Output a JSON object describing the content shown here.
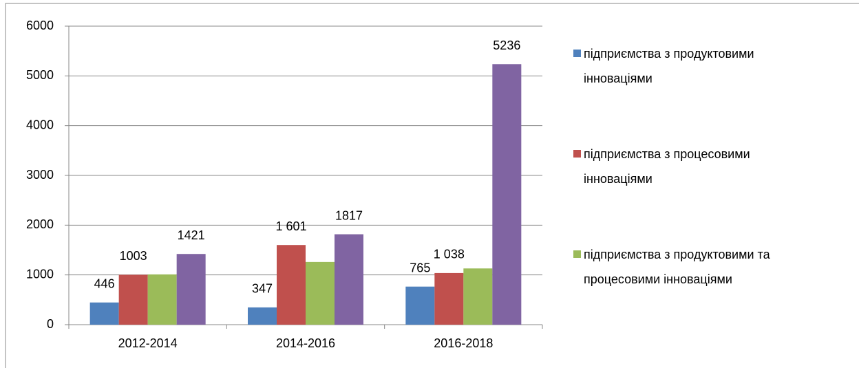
{
  "chart_data": {
    "type": "bar",
    "categories": [
      "2012-2014",
      "2014-2016",
      "2016-2018"
    ],
    "series": [
      {
        "name": "підприємства з продуктовими інноваціями",
        "color": "#4f81bd",
        "values": [
          446,
          347,
          765
        ],
        "show_labels": true
      },
      {
        "name": "підприємства з процесовими інноваціями",
        "color": "#c0504d",
        "values": [
          1003,
          1601,
          1038
        ],
        "value_labels": [
          "1003",
          "1 601",
          "1 038"
        ],
        "show_labels": true
      },
      {
        "name": "підприємства з продуктовими та процесовими інноваціями",
        "color": "#9bbb59",
        "values": [
          1010,
          1260,
          1130
        ],
        "show_labels": false
      },
      {
        "color": "#8064a2",
        "values": [
          1421,
          1817,
          5236
        ],
        "show_labels": true
      }
    ],
    "ylim": [
      0,
      6000
    ],
    "yticks": [
      0,
      1000,
      2000,
      3000,
      4000,
      5000,
      6000
    ],
    "grid": true,
    "legend": "right"
  }
}
